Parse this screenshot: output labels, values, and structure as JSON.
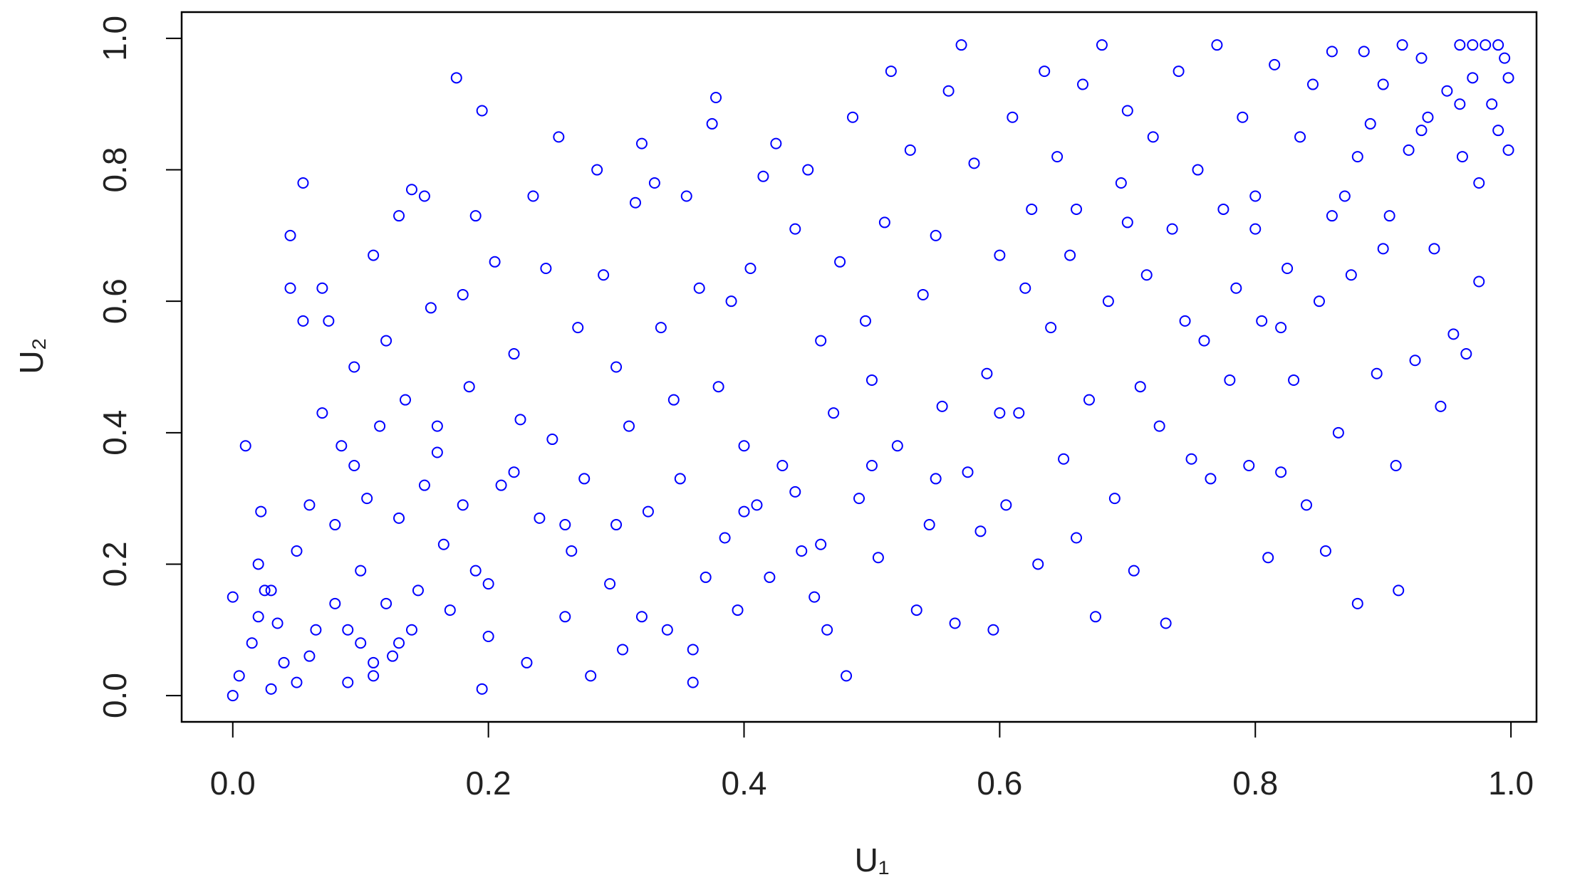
{
  "chart_data": {
    "type": "scatter",
    "x_label": "U₁",
    "y_label": "U₂",
    "color": "#0000ff",
    "xlim": [
      -0.04,
      1.02
    ],
    "ylim": [
      -0.04,
      1.04
    ],
    "xticks": [
      {
        "value": 0,
        "label": "0.0"
      },
      0.2,
      0.4,
      0.6,
      0.8,
      {
        "value": 1,
        "label": "1.0"
      }
    ],
    "yticks": [
      {
        "value": 0,
        "label": "0.0"
      },
      0.2,
      0.4,
      0.6,
      0.8,
      {
        "value": 1,
        "label": "1.0"
      }
    ],
    "x": [
      0.0,
      0.0,
      0.005,
      0.01,
      0.015,
      0.02,
      0.02,
      0.022,
      0.025,
      0.03,
      0.035,
      0.04,
      0.045,
      0.045,
      0.05,
      0.05,
      0.055,
      0.055,
      0.06,
      0.065,
      0.07,
      0.07,
      0.075,
      0.08,
      0.08,
      0.085,
      0.09,
      0.095,
      0.095,
      0.1,
      0.1,
      0.105,
      0.11,
      0.11,
      0.115,
      0.12,
      0.12,
      0.125,
      0.13,
      0.13,
      0.135,
      0.14,
      0.14,
      0.145,
      0.15,
      0.155,
      0.16,
      0.165,
      0.17,
      0.175,
      0.18,
      0.18,
      0.185,
      0.19,
      0.19,
      0.195,
      0.195,
      0.2,
      0.205,
      0.21,
      0.22,
      0.225,
      0.23,
      0.235,
      0.24,
      0.245,
      0.25,
      0.255,
      0.26,
      0.265,
      0.27,
      0.275,
      0.28,
      0.285,
      0.29,
      0.295,
      0.3,
      0.305,
      0.31,
      0.315,
      0.32,
      0.325,
      0.33,
      0.335,
      0.34,
      0.345,
      0.35,
      0.355,
      0.36,
      0.365,
      0.37,
      0.375,
      0.378,
      0.38,
      0.385,
      0.39,
      0.395,
      0.4,
      0.405,
      0.41,
      0.415,
      0.42,
      0.425,
      0.43,
      0.44,
      0.445,
      0.45,
      0.455,
      0.46,
      0.465,
      0.47,
      0.475,
      0.48,
      0.485,
      0.49,
      0.495,
      0.5,
      0.505,
      0.51,
      0.515,
      0.52,
      0.53,
      0.535,
      0.54,
      0.545,
      0.55,
      0.555,
      0.56,
      0.565,
      0.57,
      0.575,
      0.58,
      0.585,
      0.59,
      0.595,
      0.6,
      0.605,
      0.61,
      0.615,
      0.62,
      0.625,
      0.63,
      0.635,
      0.64,
      0.645,
      0.65,
      0.655,
      0.66,
      0.665,
      0.67,
      0.675,
      0.68,
      0.685,
      0.69,
      0.695,
      0.7,
      0.705,
      0.71,
      0.715,
      0.72,
      0.725,
      0.73,
      0.735,
      0.74,
      0.745,
      0.75,
      0.755,
      0.76,
      0.765,
      0.77,
      0.775,
      0.78,
      0.785,
      0.79,
      0.795,
      0.8,
      0.805,
      0.81,
      0.815,
      0.82,
      0.825,
      0.83,
      0.835,
      0.84,
      0.845,
      0.85,
      0.855,
      0.86,
      0.865,
      0.87,
      0.875,
      0.88,
      0.885,
      0.89,
      0.895,
      0.9,
      0.905,
      0.91,
      0.912,
      0.915,
      0.92,
      0.925,
      0.93,
      0.935,
      0.94,
      0.945,
      0.95,
      0.955,
      0.96,
      0.962,
      0.965,
      0.97,
      0.975,
      0.975,
      0.98,
      0.985,
      0.99,
      0.995,
      0.998,
      0.998,
      0.03,
      0.06,
      0.09,
      0.11,
      0.13,
      0.15,
      0.16,
      0.2,
      0.22,
      0.26,
      0.3,
      0.32,
      0.36,
      0.4,
      0.44,
      0.46,
      0.5,
      0.55,
      0.6,
      0.66,
      0.7,
      0.8,
      0.82,
      0.86,
      0.88,
      0.9,
      0.93,
      0.96,
      0.97,
      0.99
    ],
    "y": [
      0.0,
      0.15,
      0.03,
      0.38,
      0.08,
      0.2,
      0.12,
      0.28,
      0.16,
      0.01,
      0.11,
      0.05,
      0.7,
      0.62,
      0.22,
      0.02,
      0.78,
      0.57,
      0.29,
      0.1,
      0.62,
      0.43,
      0.57,
      0.14,
      0.26,
      0.38,
      0.02,
      0.35,
      0.5,
      0.19,
      0.08,
      0.3,
      0.67,
      0.03,
      0.41,
      0.54,
      0.14,
      0.06,
      0.73,
      0.27,
      0.45,
      0.77,
      0.1,
      0.16,
      0.76,
      0.59,
      0.41,
      0.23,
      0.13,
      0.94,
      0.61,
      0.29,
      0.47,
      0.73,
      0.19,
      0.89,
      0.01,
      0.09,
      0.66,
      0.32,
      0.52,
      0.42,
      0.05,
      0.76,
      0.27,
      0.65,
      0.39,
      0.85,
      0.12,
      0.22,
      0.56,
      0.33,
      0.03,
      0.8,
      0.64,
      0.17,
      0.5,
      0.07,
      0.41,
      0.75,
      0.84,
      0.28,
      0.78,
      0.56,
      0.1,
      0.45,
      0.33,
      0.76,
      0.02,
      0.62,
      0.18,
      0.87,
      0.91,
      0.47,
      0.24,
      0.6,
      0.13,
      0.38,
      0.65,
      0.29,
      0.79,
      0.18,
      0.84,
      0.35,
      0.71,
      0.22,
      0.8,
      0.15,
      0.54,
      0.1,
      0.43,
      0.66,
      0.03,
      0.88,
      0.3,
      0.57,
      0.48,
      0.21,
      0.72,
      0.95,
      0.38,
      0.83,
      0.13,
      0.61,
      0.26,
      0.7,
      0.44,
      0.92,
      0.11,
      0.99,
      0.34,
      0.81,
      0.25,
      0.49,
      0.1,
      0.67,
      0.29,
      0.88,
      0.43,
      0.62,
      0.74,
      0.2,
      0.95,
      0.56,
      0.82,
      0.36,
      0.67,
      0.24,
      0.93,
      0.45,
      0.12,
      0.99,
      0.6,
      0.3,
      0.78,
      0.89,
      0.19,
      0.47,
      0.64,
      0.85,
      0.41,
      0.11,
      0.71,
      0.95,
      0.57,
      0.36,
      0.8,
      0.54,
      0.33,
      0.99,
      0.74,
      0.48,
      0.62,
      0.88,
      0.35,
      0.71,
      0.57,
      0.21,
      0.96,
      0.34,
      0.65,
      0.48,
      0.85,
      0.29,
      0.93,
      0.6,
      0.22,
      0.98,
      0.4,
      0.76,
      0.64,
      0.14,
      0.98,
      0.87,
      0.49,
      0.93,
      0.73,
      0.35,
      0.16,
      0.99,
      0.83,
      0.51,
      0.97,
      0.88,
      0.68,
      0.44,
      0.92,
      0.55,
      0.99,
      0.82,
      0.52,
      0.94,
      0.63,
      0.78,
      0.99,
      0.9,
      0.86,
      0.97,
      0.83,
      0.94,
      0.16,
      0.06,
      0.1,
      0.05,
      0.08,
      0.32,
      0.37,
      0.17,
      0.34,
      0.26,
      0.26,
      0.12,
      0.07,
      0.28,
      0.31,
      0.23,
      0.35,
      0.33,
      0.43,
      0.74,
      0.72,
      0.76,
      0.56,
      0.73,
      0.82,
      0.68,
      0.86,
      0.9,
      0.99,
      0.99
    ]
  }
}
